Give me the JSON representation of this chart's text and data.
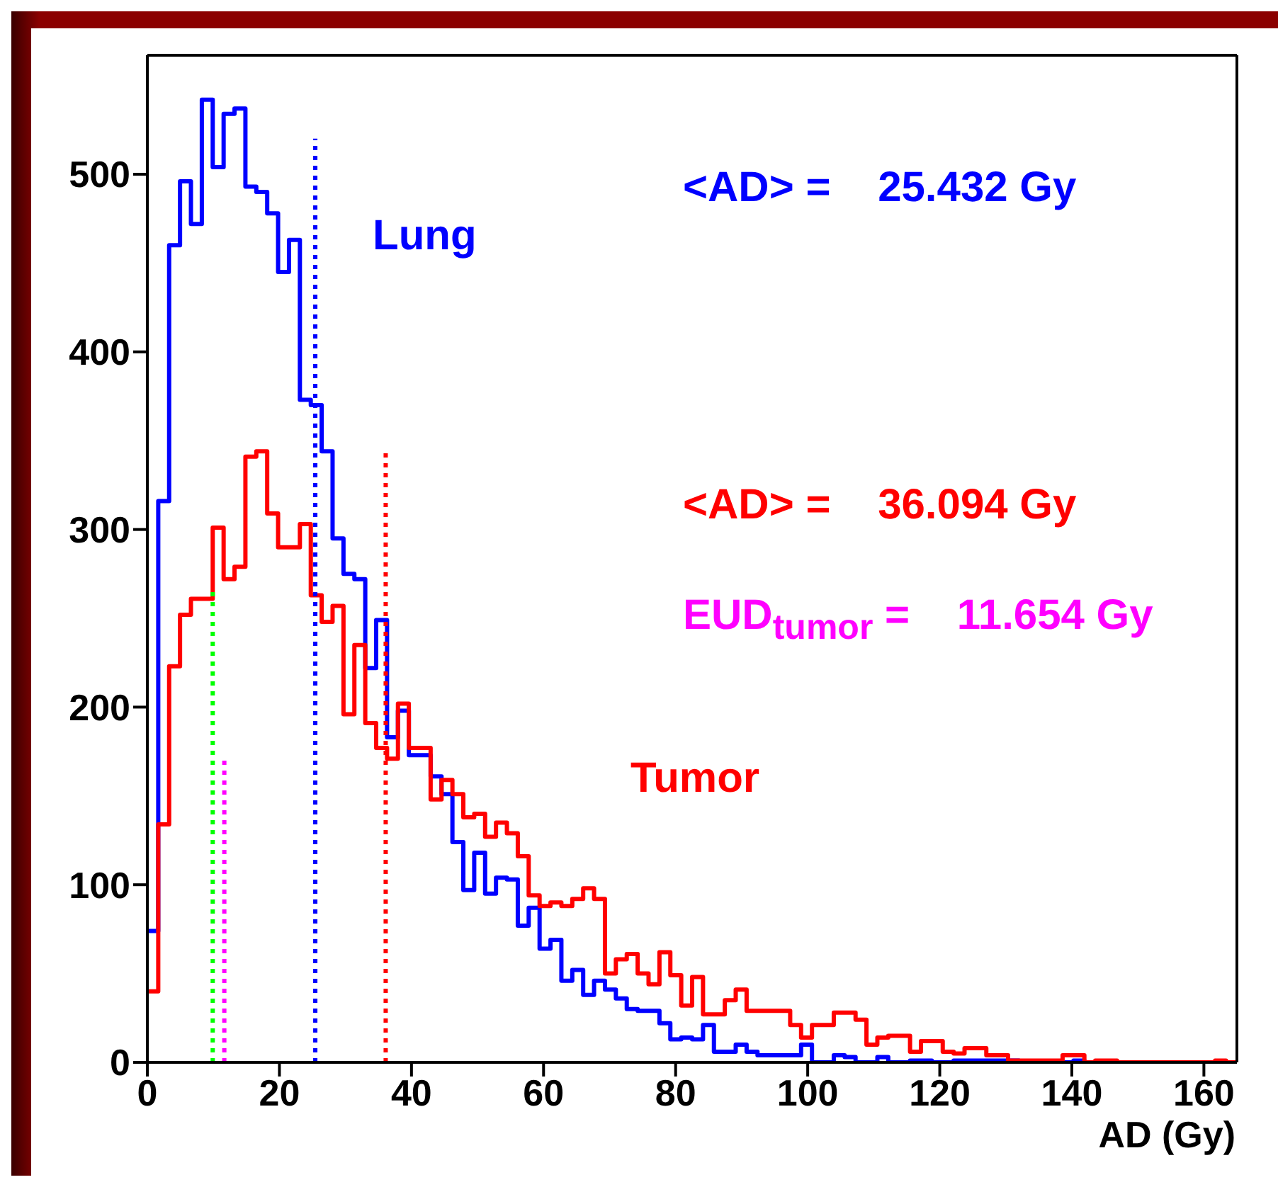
{
  "chart_data": {
    "type": "histogram",
    "xlabel": "AD (Gy)",
    "xlim": [
      0,
      165
    ],
    "ylim": [
      0,
      567
    ],
    "xticks": [
      0,
      20,
      40,
      60,
      80,
      100,
      120,
      140,
      160
    ],
    "yticks": [
      0,
      100,
      200,
      300,
      400,
      500
    ],
    "bins": [
      0,
      1.65,
      3.3,
      4.95,
      6.6,
      8.25,
      9.9,
      11.55,
      13.2,
      14.85,
      16.5,
      18.15,
      19.8,
      21.45,
      23.1,
      24.75,
      26.4,
      28.05,
      29.7,
      31.35,
      33,
      34.65,
      36.3,
      37.95,
      39.6,
      41.25,
      42.9,
      44.55,
      46.2,
      47.85,
      49.5,
      51.15,
      52.8,
      54.45,
      56.1,
      57.75,
      59.4,
      61.05,
      62.7,
      64.35,
      66,
      67.65,
      69.3,
      70.95,
      72.6,
      74.25,
      75.9,
      77.55,
      79.2,
      80.85,
      82.5,
      84.15,
      85.8,
      87.45,
      89.1,
      90.75,
      92.4,
      94.05,
      95.7,
      97.35,
      99,
      100.65,
      102.3,
      103.95,
      105.6,
      107.25,
      108.9,
      110.55,
      112.2,
      113.85,
      115.5,
      117.15,
      118.8,
      120.45,
      122.1,
      123.75,
      125.4,
      127.05,
      128.7,
      130.35,
      132,
      133.65,
      135.3,
      136.95,
      138.6,
      140.25,
      141.9,
      143.55,
      145.2,
      146.85,
      148.5,
      150.15,
      151.8,
      153.45,
      155.1,
      156.75,
      158.4,
      160.05,
      161.7,
      163.35,
      165
    ],
    "series": [
      {
        "name": "Lung",
        "color": "#0000ff",
        "values": [
          74,
          316,
          460,
          496,
          472,
          542,
          504,
          534,
          537,
          493,
          490,
          478,
          445,
          463,
          373,
          370,
          344,
          295,
          275,
          272,
          222,
          249,
          183,
          198,
          173,
          173,
          161,
          151,
          124,
          97,
          118,
          95,
          104,
          103,
          77,
          87,
          64,
          69,
          46,
          52,
          38,
          46,
          41,
          36,
          30,
          29,
          29,
          22,
          13,
          14,
          13,
          21,
          6,
          6,
          10,
          6,
          4,
          4,
          4,
          4,
          10,
          0,
          0,
          4,
          3,
          0,
          0,
          3,
          0,
          0,
          1,
          1,
          0,
          0,
          1,
          1,
          1,
          1,
          1,
          1,
          0,
          0,
          0,
          0,
          0,
          1,
          0,
          0,
          0,
          0,
          0,
          0,
          0,
          0,
          0,
          0,
          0,
          0,
          0,
          0
        ]
      },
      {
        "name": "Tumor",
        "color": "#ff0000",
        "values": [
          40,
          134,
          223,
          252,
          261,
          261,
          301,
          272,
          279,
          341,
          344,
          309,
          290,
          290,
          303,
          263,
          248,
          257,
          196,
          235,
          191,
          177,
          171,
          202,
          177,
          177,
          148,
          159,
          151,
          138,
          140,
          127,
          135,
          129,
          116,
          94,
          88,
          90,
          88,
          92,
          98,
          92,
          50,
          58,
          61,
          50,
          44,
          62,
          49,
          32,
          48,
          27,
          27,
          35,
          41,
          29,
          29,
          29,
          29,
          21,
          14,
          21,
          21,
          28,
          28,
          24,
          10,
          14,
          15,
          15,
          6,
          12,
          12,
          6,
          5,
          8,
          8,
          4,
          4,
          1,
          1,
          1,
          1,
          1,
          4,
          4,
          0,
          1,
          1,
          0,
          0,
          0,
          0,
          0,
          0,
          0,
          0,
          0,
          1,
          0
        ]
      },
      {
        "type": "line",
        "line_style": "dotted",
        "color": "#0000ff",
        "x": [
          25.432,
          25.432
        ],
        "values": [
          0,
          520
        ]
      },
      {
        "type": "line",
        "line_style": "dotted",
        "color": "#ff00ff",
        "x": [
          11.654,
          11.654
        ],
        "values": [
          0,
          172
        ]
      },
      {
        "type": "line",
        "line_style": "dotted",
        "color": "#00ff00",
        "x": [
          9.9,
          9.9
        ],
        "values": [
          0,
          265
        ]
      },
      {
        "type": "line",
        "line_style": "dotted",
        "color": "#ff0000",
        "x": [
          36.094,
          36.094
        ],
        "values": [
          0,
          345
        ]
      }
    ],
    "annotations": [
      "<AD> =    25.432 Gy",
      "<AD> =    36.094 Gy",
      "EUD$_{tumor}$ =    11.654 Gy"
    ]
  }
}
